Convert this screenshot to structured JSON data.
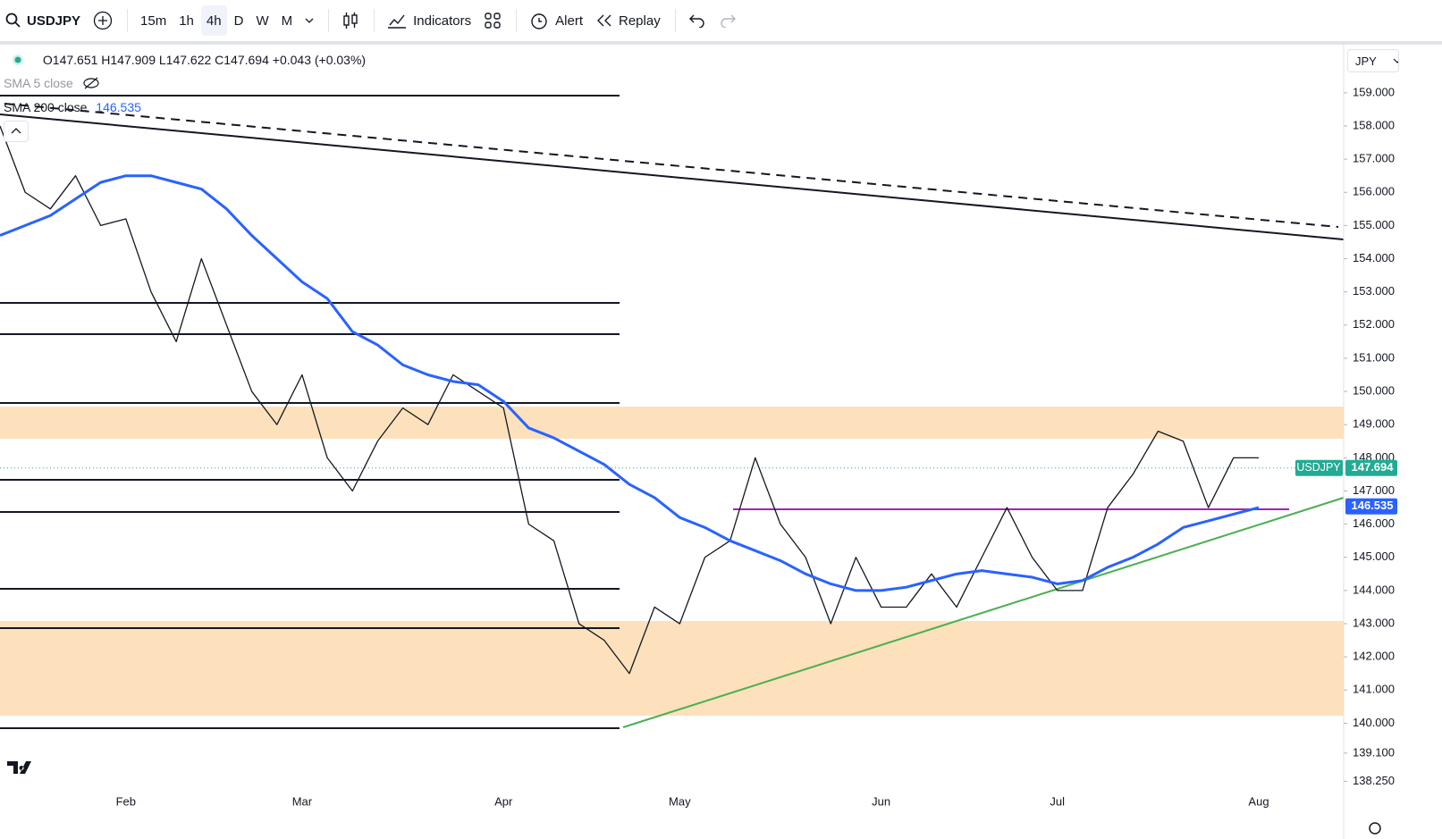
{
  "toolbar": {
    "symbol": "USDJPY",
    "intervals": [
      "15m",
      "1h",
      "4h",
      "D",
      "W",
      "M"
    ],
    "buttons": [
      "Indicators",
      "Alert",
      "Replay"
    ]
  },
  "legend": {
    "ohlc": "O147.651 H147.909 L147.622 C147.694 +0.043 (+0.03%)",
    "indicators": [
      {
        "name": "SMA 5 close"
      },
      {
        "name": "SMA 200 close",
        "value": "146.535"
      }
    ]
  },
  "currency": "JPY",
  "chart_data": {
    "type": "line",
    "categories": [
      null,
      null,
      null,
      null,
      null,
      "Feb",
      null,
      null,
      null,
      null,
      null,
      null,
      "Mar",
      null,
      null,
      null,
      null,
      null,
      null,
      null,
      "Apr",
      null,
      null,
      null,
      null,
      null,
      null,
      "May",
      null,
      null,
      null,
      null,
      null,
      null,
      null,
      "Jun",
      null,
      null,
      null,
      null,
      null,
      null,
      "Jul",
      null,
      null,
      null,
      null,
      null,
      null,
      null,
      "Aug"
    ],
    "series": [
      {
        "name": "USDJPY",
        "color": "#131722",
        "values": [
          158.0,
          156.0,
          155.5,
          156.5,
          155.0,
          155.2,
          153.0,
          151.5,
          154.0,
          152.0,
          150.0,
          149.0,
          150.5,
          148.0,
          147.0,
          148.5,
          149.5,
          149.0,
          150.5,
          150.0,
          149.5,
          146.0,
          145.5,
          143.0,
          142.5,
          141.5,
          143.5,
          143.0,
          145.0,
          145.5,
          148.0,
          146.0,
          145.0,
          143.0,
          145.0,
          143.5,
          143.5,
          144.5,
          143.5,
          145.0,
          146.5,
          145.0,
          144.0,
          144.0,
          146.5,
          147.5,
          148.8,
          148.5,
          146.5,
          148.0,
          148.0
        ]
      },
      {
        "name": "SMA 200 close",
        "color": "#2962ff",
        "values": [
          154.7,
          155.0,
          155.3,
          155.8,
          156.3,
          156.5,
          156.5,
          156.3,
          156.1,
          155.5,
          154.7,
          154.0,
          153.3,
          152.8,
          151.8,
          151.4,
          150.8,
          150.5,
          150.3,
          150.2,
          149.7,
          148.9,
          148.6,
          148.2,
          147.8,
          147.2,
          146.8,
          146.2,
          145.9,
          145.5,
          145.2,
          144.9,
          144.5,
          144.2,
          144.0,
          144.0,
          144.1,
          144.3,
          144.5,
          144.6,
          144.5,
          144.4,
          144.2,
          144.3,
          144.7,
          145.0,
          145.4,
          145.9,
          146.1,
          146.3,
          146.5
        ]
      }
    ],
    "price_tags": [
      {
        "name": "USDJPY",
        "value": 147.694,
        "color": "#22ab94"
      },
      {
        "value": 146.535,
        "color": "#2962ff"
      }
    ],
    "ylim": [
      138.1,
      160.45
    ],
    "yticks": [
      {
        "value": 159,
        "label": "159.000"
      },
      {
        "value": 158,
        "label": "158.000"
      },
      {
        "value": 157,
        "label": "157.000"
      },
      {
        "value": 156,
        "label": "156.000"
      },
      {
        "value": 155,
        "label": "155.000"
      },
      {
        "value": 154,
        "label": "154.000"
      },
      {
        "value": 153,
        "label": "153.000"
      },
      {
        "value": 152,
        "label": "152.000"
      },
      {
        "value": 151,
        "label": "151.000"
      },
      {
        "value": 150,
        "label": "150.000"
      },
      {
        "value": 149,
        "label": "149.000"
      },
      {
        "value": 148,
        "label": "148.000"
      },
      {
        "value": 147,
        "label": "147.000"
      },
      {
        "value": 146,
        "label": "146.000"
      },
      {
        "value": 145,
        "label": "145.000"
      },
      {
        "value": 144,
        "label": "144.000"
      },
      {
        "value": 143,
        "label": "143.000"
      },
      {
        "value": 142,
        "label": "142.000"
      },
      {
        "value": 141,
        "label": "141.000"
      },
      {
        "value": 140,
        "label": "140.000"
      },
      {
        "value": 139.1,
        "label": "139.100"
      },
      {
        "value": 138.25,
        "label": "138.250"
      }
    ],
    "grid": false
  }
}
